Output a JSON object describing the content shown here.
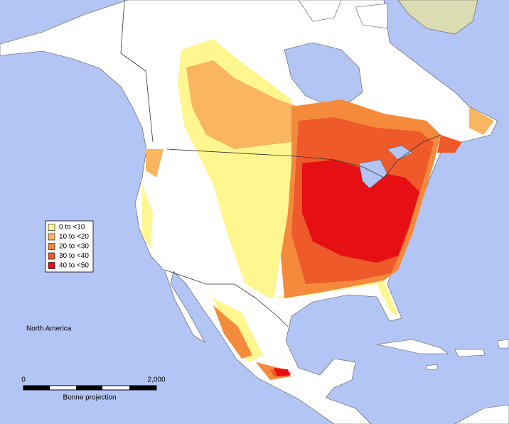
{
  "legend": {
    "items": [
      {
        "label": "0 to <10",
        "color": "#fff68f"
      },
      {
        "label": "10 to <20",
        "color": "#f9b560"
      },
      {
        "label": "20 to <30",
        "color": "#f58a3c"
      },
      {
        "label": "30 to <40",
        "color": "#ee5a2a"
      },
      {
        "label": "40 to <50",
        "color": "#e60f14"
      }
    ]
  },
  "region_label": "North America",
  "scale_bar": {
    "labels": [
      "0",
      "2,000"
    ],
    "caption": "Bonne projection"
  }
}
